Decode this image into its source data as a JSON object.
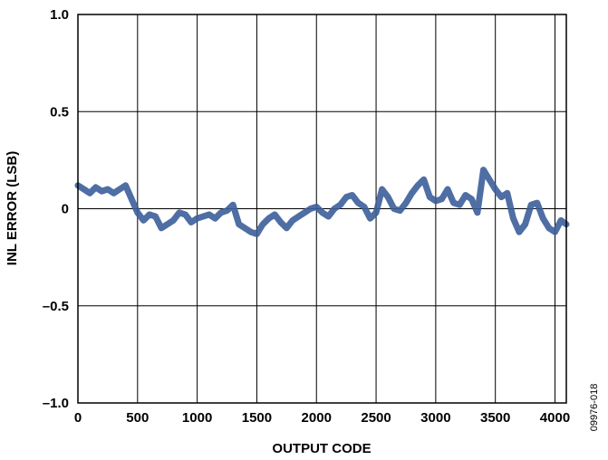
{
  "chart_data": {
    "type": "line",
    "xlabel": "OUTPUT CODE",
    "ylabel": "INL ERROR (LSB)",
    "xlim": [
      0,
      4095
    ],
    "ylim": [
      -1.0,
      1.0
    ],
    "x_ticks": [
      {
        "value": 0,
        "label": "0"
      },
      {
        "value": 500,
        "label": "500"
      },
      {
        "value": 1000,
        "label": "1000"
      },
      {
        "value": 1500,
        "label": "1500"
      },
      {
        "value": 2000,
        "label": "2000"
      },
      {
        "value": 2500,
        "label": "2500"
      },
      {
        "value": 3000,
        "label": "3000"
      },
      {
        "value": 3500,
        "label": "3500"
      },
      {
        "value": 4000,
        "label": "4000"
      }
    ],
    "y_ticks": [
      {
        "value": 1.0,
        "label": "1.0"
      },
      {
        "value": 0.5,
        "label": "0.5"
      },
      {
        "value": 0,
        "label": "0"
      },
      {
        "value": -0.5,
        "label": "–0.5"
      },
      {
        "value": -1.0,
        "label": "–1.0"
      }
    ],
    "grid": true,
    "series": [
      {
        "color": "#3b5e9a",
        "x": [
          0,
          50,
          100,
          150,
          200,
          250,
          300,
          350,
          400,
          450,
          500,
          550,
          600,
          650,
          700,
          750,
          800,
          850,
          900,
          950,
          1000,
          1050,
          1100,
          1150,
          1200,
          1250,
          1300,
          1350,
          1400,
          1450,
          1500,
          1550,
          1600,
          1650,
          1700,
          1750,
          1800,
          1850,
          1900,
          1950,
          2000,
          2050,
          2100,
          2150,
          2200,
          2250,
          2300,
          2350,
          2400,
          2450,
          2500,
          2550,
          2600,
          2650,
          2700,
          2750,
          2800,
          2850,
          2900,
          2950,
          3000,
          3050,
          3100,
          3150,
          3200,
          3250,
          3300,
          3350,
          3400,
          3450,
          3500,
          3550,
          3600,
          3650,
          3700,
          3750,
          3800,
          3850,
          3900,
          3950,
          4000,
          4050,
          4095
        ],
        "y": [
          0.12,
          0.1,
          0.08,
          0.11,
          0.09,
          0.1,
          0.08,
          0.1,
          0.12,
          0.05,
          -0.02,
          -0.06,
          -0.03,
          -0.04,
          -0.1,
          -0.08,
          -0.06,
          -0.02,
          -0.03,
          -0.07,
          -0.05,
          -0.04,
          -0.03,
          -0.05,
          -0.02,
          -0.01,
          0.02,
          -0.08,
          -0.1,
          -0.12,
          -0.13,
          -0.08,
          -0.05,
          -0.03,
          -0.07,
          -0.1,
          -0.06,
          -0.04,
          -0.02,
          0.0,
          0.01,
          -0.02,
          -0.04,
          0.0,
          0.02,
          0.06,
          0.07,
          0.03,
          0.01,
          -0.05,
          -0.02,
          0.1,
          0.06,
          0.0,
          -0.01,
          0.03,
          0.08,
          0.12,
          0.15,
          0.06,
          0.04,
          0.05,
          0.1,
          0.03,
          0.02,
          0.07,
          0.05,
          -0.02,
          0.2,
          0.15,
          0.1,
          0.06,
          0.08,
          -0.05,
          -0.12,
          -0.08,
          0.02,
          0.03,
          -0.05,
          -0.1,
          -0.12,
          -0.06,
          -0.08
        ]
      }
    ]
  },
  "figure_id": "09976-018"
}
